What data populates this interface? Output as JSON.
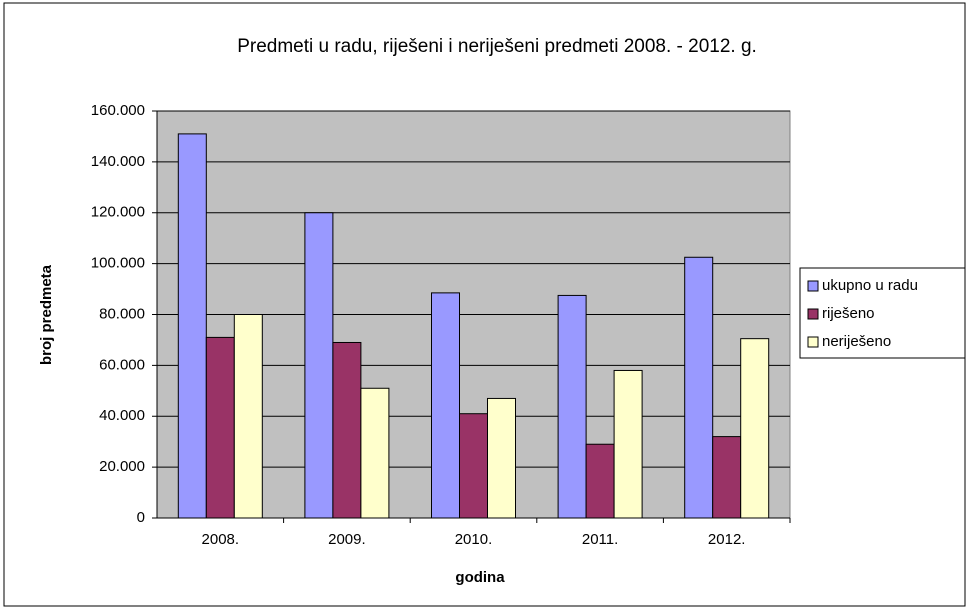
{
  "chart_data": {
    "type": "bar",
    "title": "Predmeti u radu, riješeni i neriješeni predmeti 2008. - 2012. g.",
    "x_label": "godina",
    "y_label": "broj predmeta",
    "categories": [
      "2008.",
      "2009.",
      "2010.",
      "2011.",
      "2012."
    ],
    "series": [
      {
        "name": "ukupno u radu",
        "color": "#9999ff",
        "values": [
          151000,
          120000,
          88500,
          87500,
          102500
        ]
      },
      {
        "name": "riješeno",
        "color": "#993366",
        "values": [
          71000,
          69000,
          41000,
          29000,
          32000
        ]
      },
      {
        "name": "neriješeno",
        "color": "#ffffcc",
        "values": [
          80000,
          51000,
          47000,
          58000,
          70500
        ]
      }
    ],
    "ylim": [
      0,
      160000
    ],
    "yticks": [
      0,
      {
        "value": 20000,
        "label": "20.000"
      },
      {
        "value": 40000,
        "label": "40.000"
      },
      {
        "value": 60000,
        "label": "60.000"
      },
      {
        "value": 80000,
        "label": "80.000"
      },
      {
        "value": 100000,
        "label": "100.000"
      },
      {
        "value": 120000,
        "label": "120.000"
      },
      {
        "value": 140000,
        "label": "140.000"
      },
      {
        "value": 160000,
        "label": "160.000"
      }
    ],
    "grid": true,
    "legend": "right"
  }
}
